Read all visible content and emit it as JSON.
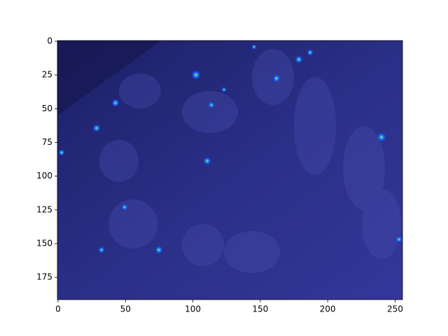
{
  "chart_data": {
    "type": "image",
    "xlim": [
      -0.5,
      255.5
    ],
    "ylim": [
      -0.5,
      191.5
    ],
    "y_inverted": true,
    "xticks": [
      0,
      50,
      100,
      150,
      200,
      250
    ],
    "yticks": [
      0,
      25,
      50,
      75,
      100,
      125,
      150,
      175
    ]
  }
}
